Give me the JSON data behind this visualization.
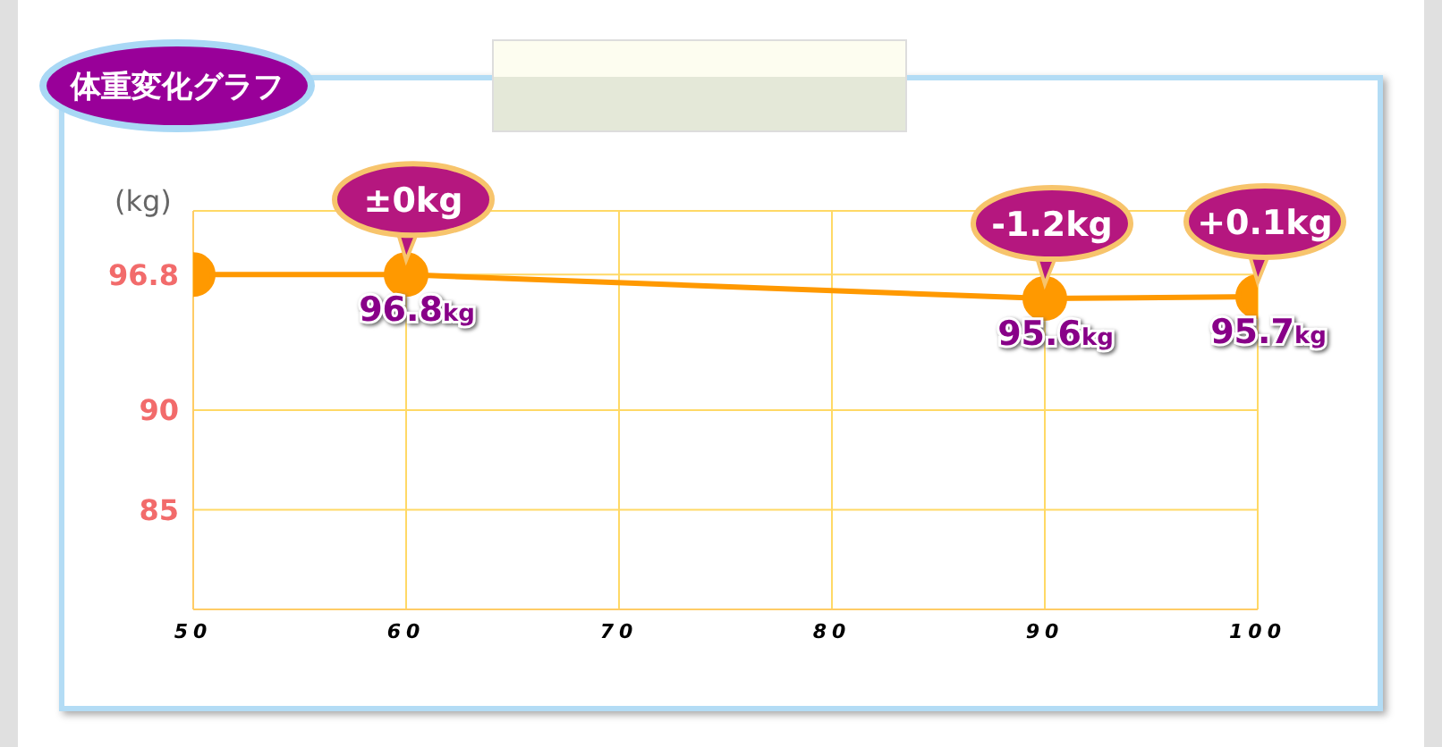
{
  "chart_data": {
    "type": "line",
    "title": "体重変化グラフ",
    "ylabel": "(kg)",
    "x": [
      50,
      60,
      90,
      100
    ],
    "series": [
      {
        "color": "#ff9900",
        "values": [
          96.8,
          96.8,
          95.6,
          95.7
        ],
        "value_labels": [
          null,
          "96.8kg",
          "95.6kg",
          "95.7kg"
        ]
      }
    ],
    "xlim": [
      50,
      100
    ],
    "xticks": [
      50,
      60,
      70,
      80,
      90,
      100
    ],
    "ylim": [
      80,
      100
    ],
    "yticks": [
      85,
      90,
      96.8
    ],
    "annotations": [
      {
        "text": "±0kg",
        "x": 60,
        "y": 96.8
      },
      {
        "text": "-1.2kg",
        "x": 90,
        "y": 95.6
      },
      {
        "text": "+0.1kg",
        "x": 100,
        "y": 95.7
      }
    ],
    "grid": true,
    "marker": "circle",
    "line_style": "solid"
  }
}
